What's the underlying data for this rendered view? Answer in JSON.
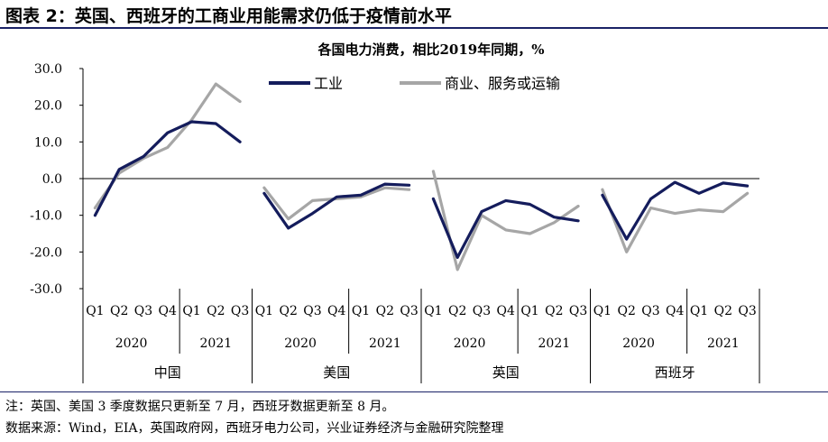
{
  "page": {
    "figure_title": "图表 2：英国、西班牙的工商业用能需求仍低于疫情前水平",
    "note": "注：英国、美国 3 季度数据只更新至 7 月，西班牙数据更新至 8 月。",
    "source": "数据来源：Wind，EIA，英国政府网，西班牙电力公司，兴业证券经济与金融研究院整理"
  },
  "chart_data": {
    "type": "line",
    "title": "各国电力消费，相比2019年同期，%",
    "ylim": [
      -30,
      30
    ],
    "yticks": [
      "30.0",
      "20.0",
      "10.0",
      "0.0",
      "-10.0",
      "-20.0",
      "-30.0"
    ],
    "ytick_values": [
      30,
      20,
      10,
      0,
      -10,
      -20,
      -30
    ],
    "grid": false,
    "legend_position": "top",
    "quarter_labels": [
      "Q1",
      "Q2",
      "Q3",
      "Q4",
      "Q1",
      "Q2",
      "Q3"
    ],
    "year_labels": [
      "2020",
      "2021"
    ],
    "groups": [
      {
        "name": "中国",
        "series": [
          {
            "name": "工业",
            "values": [
              -10.0,
              2.5,
              6.0,
              12.5,
              15.5,
              15.0,
              10.0
            ]
          },
          {
            "name": "商业、服务或运输",
            "values": [
              -8.0,
              1.5,
              5.5,
              8.5,
              16.0,
              25.8,
              21.0
            ]
          }
        ]
      },
      {
        "name": "美国",
        "series": [
          {
            "name": "工业",
            "values": [
              -4.0,
              -13.5,
              -9.5,
              -5.0,
              -4.5,
              -1.5,
              -1.8
            ]
          },
          {
            "name": "商业、服务或运输",
            "values": [
              -2.5,
              -11.0,
              -6.0,
              -5.5,
              -5.0,
              -2.5,
              -3.0
            ]
          }
        ]
      },
      {
        "name": "英国",
        "series": [
          {
            "name": "工业",
            "values": [
              -5.5,
              -21.5,
              -9.0,
              -6.0,
              -7.0,
              -10.5,
              -11.5
            ]
          },
          {
            "name": "商业、服务或运输",
            "values": [
              2.0,
              -24.8,
              -10.0,
              -14.0,
              -15.0,
              -12.0,
              -7.5
            ]
          }
        ]
      },
      {
        "name": "西班牙",
        "series": [
          {
            "name": "工业",
            "values": [
              -4.5,
              -16.5,
              -5.5,
              -1.0,
              -4.0,
              -1.2,
              -2.0
            ]
          },
          {
            "name": "商业、服务或运输",
            "values": [
              -3.0,
              -20.0,
              -8.0,
              -9.5,
              -8.5,
              -9.0,
              -4.0
            ]
          }
        ]
      }
    ],
    "legend": [
      {
        "name": "工业",
        "color": "#141c5c"
      },
      {
        "name": "商业、服务或运输",
        "color": "#a6a6a6"
      }
    ]
  }
}
